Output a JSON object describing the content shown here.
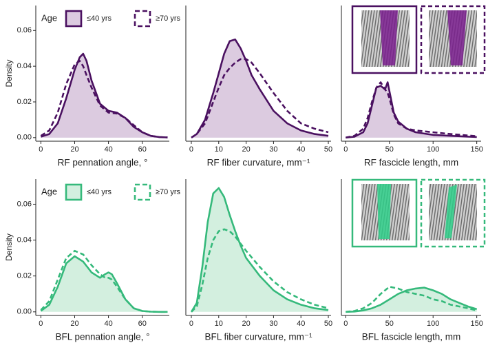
{
  "chart_data": [
    {
      "type": "area",
      "ylabel": "Density",
      "legend_title": "Age",
      "line_color": "#4a1060",
      "fill_color": "#dccbe0",
      "ylim": [
        -0.002,
        0.074
      ],
      "yticks": [
        {
          "value": 0,
          "label": "0.00"
        },
        {
          "value": 0.02,
          "label": "0.02"
        },
        {
          "value": 0.04,
          "label": "0.04"
        },
        {
          "value": 0.06,
          "label": "0.06"
        }
      ],
      "series": [
        {
          "name": "≤40 yrs",
          "linestyle": "solid"
        },
        {
          "name": "≥70 yrs",
          "linestyle": "dashed"
        }
      ],
      "panels": [
        {
          "xlabel": "RF pennation angle, °",
          "xlim": [
            -3,
            76
          ],
          "xticks": [
            0,
            20,
            40,
            60
          ],
          "x": [
            0,
            5,
            10,
            15,
            20,
            23,
            25,
            27,
            30,
            35,
            40,
            45,
            50,
            55,
            60,
            65,
            70,
            75
          ],
          "values": [
            [
              0.0005,
              0.002,
              0.008,
              0.022,
              0.038,
              0.045,
              0.047,
              0.043,
              0.032,
              0.019,
              0.015,
              0.014,
              0.011,
              0.006,
              0.003,
              0.001,
              0.0003,
              0.0001
            ],
            [
              0.001,
              0.004,
              0.014,
              0.03,
              0.041,
              0.043,
              0.04,
              0.035,
              0.028,
              0.018,
              0.014,
              0.0135,
              0.011,
              0.007,
              0.003,
              0.001,
              0.0003,
              0.0001
            ]
          ]
        },
        {
          "xlabel": "RF fiber curvature, mm⁻¹",
          "xlim": [
            -2,
            51
          ],
          "xticks": [
            0,
            10,
            20,
            30,
            40,
            50
          ],
          "x": [
            0,
            2,
            5,
            8,
            10,
            12,
            14,
            16,
            18,
            20,
            22,
            25,
            30,
            35,
            40,
            45,
            50
          ],
          "values": [
            [
              0,
              0.002,
              0.01,
              0.025,
              0.036,
              0.047,
              0.054,
              0.055,
              0.05,
              0.043,
              0.035,
              0.027,
              0.015,
              0.008,
              0.004,
              0.002,
              0.001
            ],
            [
              0,
              0.002,
              0.008,
              0.02,
              0.028,
              0.035,
              0.039,
              0.042,
              0.044,
              0.044,
              0.042,
              0.036,
              0.025,
              0.015,
              0.008,
              0.005,
              0.003
            ]
          ]
        },
        {
          "xlabel": "RF fascicle length, mm",
          "xlim": [
            -5,
            155
          ],
          "xticks": [
            0,
            50,
            100,
            150
          ],
          "x": [
            0,
            10,
            20,
            25,
            30,
            35,
            40,
            45,
            48,
            50,
            55,
            60,
            70,
            80,
            100,
            120,
            150
          ],
          "values": [
            [
              0,
              0.0005,
              0.003,
              0.008,
              0.018,
              0.028,
              0.029,
              0.027,
              0.031,
              0.026,
              0.014,
              0.009,
              0.005,
              0.003,
              0.0015,
              0.001,
              0.0003
            ],
            [
              0,
              0.001,
              0.005,
              0.011,
              0.02,
              0.028,
              0.031,
              0.027,
              0.025,
              0.022,
              0.013,
              0.008,
              0.005,
              0.004,
              0.003,
              0.002,
              0.0008
            ]
          ]
        }
      ]
    },
    {
      "type": "area",
      "ylabel": "Density",
      "legend_title": "Age",
      "line_color": "#35b97b",
      "fill_color": "#d3efdf",
      "ylim": [
        -0.002,
        0.074
      ],
      "yticks": [
        {
          "value": 0,
          "label": "0.00"
        },
        {
          "value": 0.02,
          "label": "0.02"
        },
        {
          "value": 0.04,
          "label": "0.04"
        },
        {
          "value": 0.06,
          "label": "0.06"
        }
      ],
      "series": [
        {
          "name": "≤40 yrs",
          "linestyle": "solid"
        },
        {
          "name": "≥70 yrs",
          "linestyle": "dashed"
        }
      ],
      "panels": [
        {
          "xlabel": "BFL pennation angle, °",
          "xlim": [
            -3,
            76
          ],
          "xticks": [
            0,
            20,
            40,
            60
          ],
          "x": [
            0,
            5,
            10,
            15,
            20,
            25,
            30,
            35,
            38,
            40,
            42,
            45,
            50,
            55,
            60,
            65,
            70,
            75
          ],
          "values": [
            [
              0.0005,
              0.004,
              0.014,
              0.027,
              0.031,
              0.028,
              0.022,
              0.019,
              0.021,
              0.022,
              0.021,
              0.016,
              0.007,
              0.002,
              0.0005,
              0.0001,
              0,
              0
            ],
            [
              0.001,
              0.006,
              0.018,
              0.03,
              0.034,
              0.032,
              0.026,
              0.021,
              0.019,
              0.019,
              0.018,
              0.014,
              0.007,
              0.002,
              0.0005,
              0.0001,
              0,
              0
            ]
          ]
        },
        {
          "xlabel": "BFL fiber curvature, mm⁻¹",
          "xlim": [
            -2,
            51
          ],
          "xticks": [
            0,
            10,
            20,
            30,
            40,
            50
          ],
          "x": [
            0,
            2,
            4,
            6,
            8,
            10,
            12,
            14,
            16,
            18,
            20,
            25,
            30,
            35,
            40,
            45,
            50
          ],
          "values": [
            [
              0,
              0.005,
              0.025,
              0.05,
              0.066,
              0.069,
              0.064,
              0.054,
              0.045,
              0.037,
              0.03,
              0.02,
              0.012,
              0.007,
              0.004,
              0.002,
              0.001
            ],
            [
              0,
              0.003,
              0.015,
              0.03,
              0.04,
              0.045,
              0.046,
              0.045,
              0.042,
              0.038,
              0.034,
              0.025,
              0.017,
              0.011,
              0.007,
              0.004,
              0.002
            ]
          ]
        },
        {
          "xlabel": "BFL fascicle length, mm",
          "xlim": [
            -5,
            155
          ],
          "xticks": [
            0,
            50,
            100,
            150
          ],
          "x": [
            0,
            10,
            20,
            30,
            40,
            50,
            60,
            70,
            80,
            90,
            100,
            110,
            120,
            130,
            140,
            150
          ],
          "values": [
            [
              0,
              0.0002,
              0.0008,
              0.002,
              0.004,
              0.007,
              0.01,
              0.012,
              0.013,
              0.0135,
              0.012,
              0.01,
              0.007,
              0.005,
              0.003,
              0.0015
            ],
            [
              0,
              0.0005,
              0.002,
              0.005,
              0.01,
              0.014,
              0.013,
              0.011,
              0.01,
              0.009,
              0.007,
              0.006,
              0.004,
              0.003,
              0.002,
              0.0008
            ]
          ]
        }
      ]
    }
  ]
}
